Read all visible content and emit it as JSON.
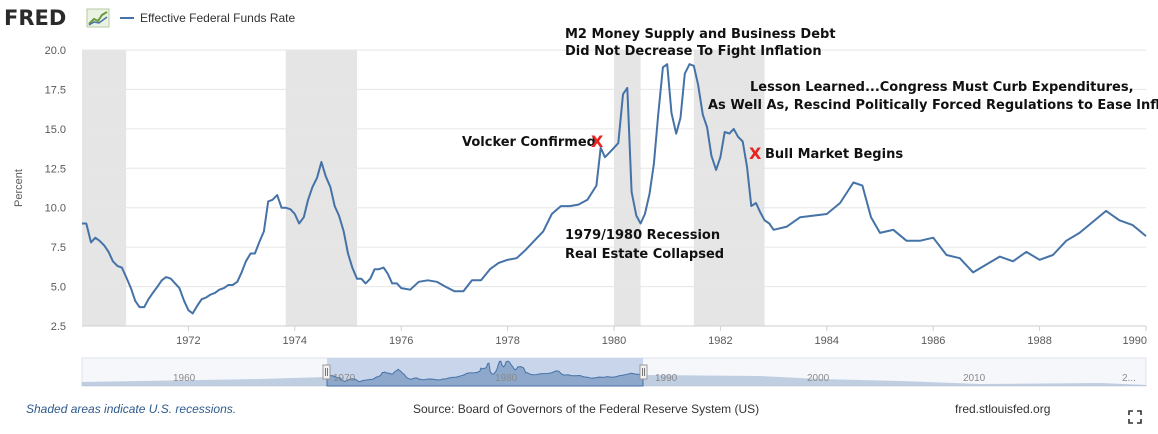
{
  "header": {
    "logo": "FRED",
    "logo_icon": "chart-line-icon",
    "legend_label": "Effective Federal Funds Rate"
  },
  "chart_data": {
    "type": "line",
    "title": "",
    "xlabel": "",
    "ylabel": "Percent",
    "xlim": [
      1970.0,
      1990.0
    ],
    "ylim": [
      2.5,
      20.0
    ],
    "x_ticks": [
      "1972",
      "1974",
      "1976",
      "1978",
      "1980",
      "1982",
      "1984",
      "1986",
      "1988",
      "1990"
    ],
    "x_tick_values": [
      1972,
      1974,
      1976,
      1978,
      1980,
      1982,
      1984,
      1986,
      1988,
      1990
    ],
    "y_ticks": [
      "2.5",
      "5.0",
      "7.5",
      "10.0",
      "12.5",
      "15.0",
      "17.5",
      "20.0"
    ],
    "y_tick_values": [
      2.5,
      5.0,
      7.5,
      10.0,
      12.5,
      15.0,
      17.5,
      20.0
    ],
    "grid": "horizontal",
    "series_color": "#4572a7",
    "recession_color": "#e5e5e5",
    "recessions": [
      [
        1970.0,
        1970.83
      ],
      [
        1973.83,
        1975.17
      ],
      [
        1980.0,
        1980.5
      ],
      [
        1981.5,
        1982.83
      ]
    ],
    "series": [
      {
        "name": "Effective Federal Funds Rate",
        "x": [
          1970.0,
          1970.08,
          1970.17,
          1970.25,
          1970.33,
          1970.42,
          1970.5,
          1970.58,
          1970.67,
          1970.75,
          1970.83,
          1970.92,
          1971.0,
          1971.08,
          1971.17,
          1971.25,
          1971.33,
          1971.42,
          1971.5,
          1971.58,
          1971.67,
          1971.75,
          1971.83,
          1971.92,
          1972.0,
          1972.08,
          1972.17,
          1972.25,
          1972.33,
          1972.42,
          1972.5,
          1972.58,
          1972.67,
          1972.75,
          1972.83,
          1972.92,
          1973.0,
          1973.08,
          1973.17,
          1973.25,
          1973.33,
          1973.42,
          1973.5,
          1973.58,
          1973.67,
          1973.75,
          1973.83,
          1973.92,
          1974.0,
          1974.08,
          1974.17,
          1974.25,
          1974.33,
          1974.42,
          1974.5,
          1974.58,
          1974.67,
          1974.75,
          1974.83,
          1974.92,
          1975.0,
          1975.08,
          1975.17,
          1975.25,
          1975.33,
          1975.42,
          1975.5,
          1975.58,
          1975.67,
          1975.75,
          1975.83,
          1975.92,
          1976.0,
          1976.17,
          1976.33,
          1976.5,
          1976.67,
          1976.83,
          1977.0,
          1977.17,
          1977.33,
          1977.5,
          1977.67,
          1977.83,
          1978.0,
          1978.17,
          1978.33,
          1978.5,
          1978.67,
          1978.83,
          1979.0,
          1979.17,
          1979.33,
          1979.5,
          1979.67,
          1979.75,
          1979.83,
          1980.0,
          1980.08,
          1980.17,
          1980.25,
          1980.33,
          1980.42,
          1980.5,
          1980.58,
          1980.67,
          1980.75,
          1980.83,
          1980.92,
          1981.0,
          1981.08,
          1981.17,
          1981.25,
          1981.33,
          1981.42,
          1981.5,
          1981.58,
          1981.67,
          1981.75,
          1981.83,
          1981.92,
          1982.0,
          1982.08,
          1982.17,
          1982.25,
          1982.33,
          1982.42,
          1982.5,
          1982.58,
          1982.67,
          1982.75,
          1982.83,
          1982.92,
          1983.0,
          1983.25,
          1983.5,
          1983.75,
          1984.0,
          1984.25,
          1984.5,
          1984.67,
          1984.83,
          1985.0,
          1985.25,
          1985.5,
          1985.75,
          1986.0,
          1986.25,
          1986.5,
          1986.75,
          1987.0,
          1987.25,
          1987.5,
          1987.75,
          1988.0,
          1988.25,
          1988.5,
          1988.75,
          1989.0,
          1989.25,
          1989.5,
          1989.75,
          1990.0
        ],
        "y": [
          9.0,
          9.0,
          7.8,
          8.1,
          7.9,
          7.6,
          7.2,
          6.6,
          6.3,
          6.2,
          5.6,
          4.9,
          4.1,
          3.7,
          3.7,
          4.2,
          4.6,
          5.0,
          5.4,
          5.6,
          5.5,
          5.2,
          4.9,
          4.1,
          3.5,
          3.3,
          3.8,
          4.2,
          4.3,
          4.5,
          4.6,
          4.8,
          4.9,
          5.1,
          5.1,
          5.3,
          5.9,
          6.6,
          7.1,
          7.1,
          7.8,
          8.5,
          10.4,
          10.5,
          10.8,
          10.0,
          10.0,
          9.9,
          9.6,
          9.0,
          9.4,
          10.5,
          11.3,
          11.9,
          12.9,
          12.0,
          11.3,
          10.1,
          9.5,
          8.5,
          7.1,
          6.2,
          5.5,
          5.5,
          5.2,
          5.5,
          6.1,
          6.1,
          6.2,
          5.8,
          5.2,
          5.2,
          4.9,
          4.8,
          5.3,
          5.4,
          5.3,
          5.0,
          4.7,
          4.7,
          5.4,
          5.4,
          6.1,
          6.5,
          6.7,
          6.8,
          7.3,
          7.9,
          8.5,
          9.6,
          10.1,
          10.1,
          10.2,
          10.5,
          11.4,
          13.8,
          13.2,
          13.8,
          14.1,
          17.2,
          17.6,
          11.0,
          9.5,
          9.0,
          9.6,
          10.9,
          12.8,
          15.9,
          18.9,
          19.1,
          16.0,
          14.7,
          15.7,
          18.5,
          19.1,
          19.0,
          17.8,
          15.9,
          15.1,
          13.3,
          12.4,
          13.2,
          14.8,
          14.7,
          15.0,
          14.5,
          14.2,
          12.6,
          10.1,
          10.3,
          9.7,
          9.2,
          9.0,
          8.6,
          8.8,
          9.4,
          9.5,
          9.6,
          10.3,
          11.6,
          11.4,
          9.4,
          8.4,
          8.6,
          7.9,
          7.9,
          8.1,
          7.0,
          6.8,
          5.9,
          6.4,
          6.9,
          6.6,
          7.2,
          6.7,
          7.0,
          7.9,
          8.4,
          9.1,
          9.8,
          9.2,
          8.9,
          8.2
        ]
      }
    ],
    "annotations": [
      {
        "text": "M2 Money Supply and Business Debt",
        "kind": "note"
      },
      {
        "text": "Did Not Decrease To Fight Inflation",
        "kind": "note"
      },
      {
        "text": "Lesson Learned...Congress Must Curb Expenditures,",
        "kind": "note"
      },
      {
        "text": "As Well As, Rescind Politically Forced Regulations to Ease Inflation",
        "kind": "note"
      },
      {
        "text": "Volcker Confirmed",
        "kind": "note"
      },
      {
        "text": "X",
        "kind": "marker"
      },
      {
        "text": "X",
        "kind": "marker"
      },
      {
        "text": "Bull Market Begins",
        "kind": "note"
      },
      {
        "text": "1979/1980 Recession",
        "kind": "note"
      },
      {
        "text": "Real Estate Collapsed",
        "kind": "note"
      }
    ]
  },
  "navigator": {
    "labels": [
      "1960",
      "1970",
      "1980",
      "1990",
      "2000",
      "2010",
      "2..."
    ],
    "color": "#4572a7",
    "window_color": "#c9d5ea"
  },
  "footer": {
    "recession_note": "Shaded areas indicate U.S. recessions.",
    "source": "Source: Board of Governors of the Federal Reserve System (US)",
    "site": "fred.stlouisfed.org",
    "fullscreen_icon": "expand-icon"
  }
}
